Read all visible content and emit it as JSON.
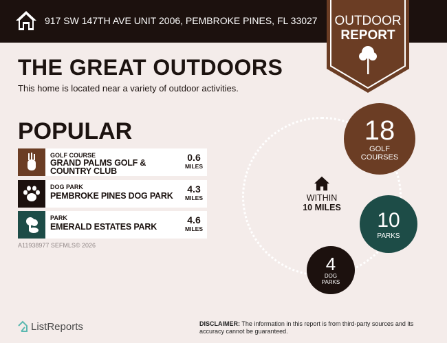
{
  "header": {
    "address": "917 SW 147TH AVE UNIT 2006, PEMBROKE PINES, FL 33027",
    "badge_line1": "OUTDOOR",
    "badge_line2": "REPORT"
  },
  "title": "THE GREAT OUTDOORS",
  "subtitle": "This home is located near a variety of outdoor activities.",
  "popular": {
    "heading": "POPULAR",
    "items": [
      {
        "category": "GOLF COURSE",
        "name": "GRAND PALMS GOLF & COUNTRY CLUB",
        "distance": "0.6",
        "unit": "MILES",
        "icon": "golf-bag-icon",
        "color": "#6b3d24"
      },
      {
        "category": "DOG PARK",
        "name": "PEMBROKE PINES DOG PARK",
        "distance": "4.3",
        "unit": "MILES",
        "icon": "paw-icon",
        "color": "#1c110e"
      },
      {
        "category": "PARK",
        "name": "EMERALD ESTATES PARK",
        "distance": "4.6",
        "unit": "MILES",
        "icon": "park-icon",
        "color": "#1d4c47"
      }
    ]
  },
  "watermark": "A11938977 SEFMLS© 2026",
  "within": {
    "line1": "WITHIN",
    "line2": "10 MILES"
  },
  "stats": [
    {
      "count": "18",
      "label": "GOLF COURSES",
      "color": "#6b3d24"
    },
    {
      "count": "10",
      "label": "PARKS",
      "color": "#1d4c47"
    },
    {
      "count": "4",
      "label": "DOG PARKS",
      "color": "#1c110e"
    }
  ],
  "footer": {
    "logo": "ListReports",
    "disclaimer_label": "DISCLAIMER:",
    "disclaimer": " The information in this report is from third-party sources and its accuracy cannot be guaranteed."
  }
}
